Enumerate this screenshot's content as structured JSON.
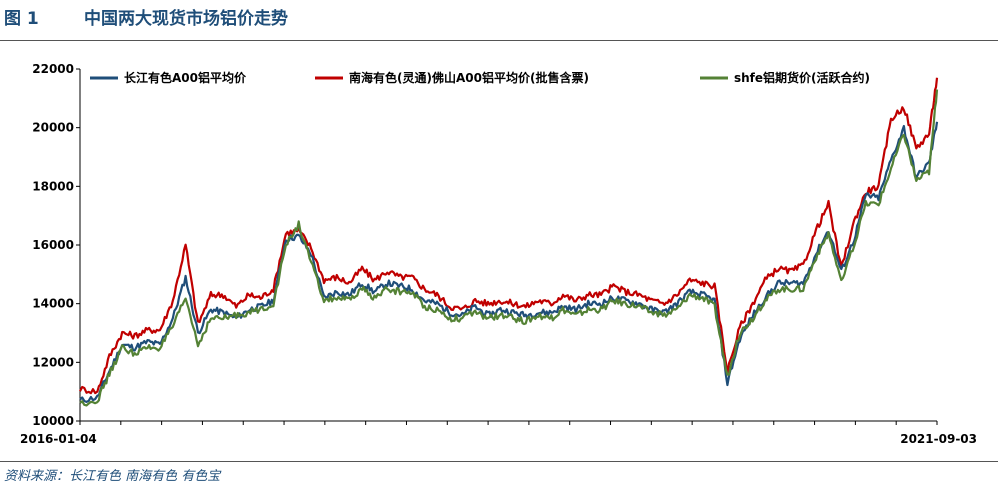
{
  "figure": {
    "number": "图 1",
    "title": "中国两大现货市场铝价走势",
    "source": "资料来源：长江有色   南海有色   有色宝"
  },
  "chart_data": {
    "type": "line",
    "title": "",
    "xlabel": "",
    "ylabel": "",
    "ylim": [
      10000,
      22000
    ],
    "yticks": [
      10000,
      12000,
      14000,
      16000,
      18000,
      20000,
      22000
    ],
    "x_start_label": "2016-01-04",
    "x_end_label": "2021-09-03",
    "grid": false,
    "legend_position": "top",
    "x": [
      "2016-01-04",
      "2016-02-15",
      "2016-03-15",
      "2016-04-15",
      "2016-05-15",
      "2016-06-15",
      "2016-07-15",
      "2016-08-15",
      "2016-09-15",
      "2016-10-15",
      "2016-11-15",
      "2016-12-15",
      "2017-01-15",
      "2017-02-15",
      "2017-03-15",
      "2017-04-15",
      "2017-05-15",
      "2017-06-15",
      "2017-07-15",
      "2017-08-15",
      "2017-09-15",
      "2017-10-15",
      "2017-11-15",
      "2017-12-15",
      "2018-01-15",
      "2018-02-15",
      "2018-03-15",
      "2018-04-15",
      "2018-05-15",
      "2018-06-15",
      "2018-07-15",
      "2018-08-15",
      "2018-09-15",
      "2018-10-15",
      "2018-11-15",
      "2018-12-15",
      "2019-01-15",
      "2019-02-15",
      "2019-03-15",
      "2019-04-15",
      "2019-05-15",
      "2019-06-15",
      "2019-07-15",
      "2019-08-15",
      "2019-09-15",
      "2019-10-15",
      "2019-11-15",
      "2019-12-15",
      "2020-01-15",
      "2020-02-15",
      "2020-03-15",
      "2020-04-15",
      "2020-05-15",
      "2020-06-15",
      "2020-07-15",
      "2020-08-15",
      "2020-09-15",
      "2020-10-15",
      "2020-11-15",
      "2020-12-15",
      "2021-01-15",
      "2021-02-15",
      "2021-03-15",
      "2021-04-15",
      "2021-05-15",
      "2021-06-15",
      "2021-07-15",
      "2021-08-15",
      "2021-09-03"
    ],
    "series": [
      {
        "name": "长江有色A00铝平均价",
        "color": "#1f4e79",
        "values": [
          10700,
          10800,
          11700,
          12600,
          12500,
          12700,
          12600,
          13500,
          14900,
          13000,
          13800,
          13700,
          13500,
          13800,
          13900,
          14100,
          16200,
          16300,
          15700,
          14200,
          14400,
          14300,
          14700,
          14400,
          14700,
          14600,
          14500,
          14100,
          14000,
          13700,
          13600,
          13900,
          13600,
          13800,
          13700,
          13600,
          13700,
          13700,
          13900,
          13800,
          14000,
          14000,
          14200,
          14100,
          14000,
          13800,
          13700,
          14000,
          14400,
          14300,
          14100,
          11300,
          12800,
          13600,
          14200,
          14700,
          14700,
          14700,
          15700,
          16500,
          15100,
          16200,
          17700,
          17600,
          18900,
          20000,
          18300,
          18800,
          20200
        ]
      },
      {
        "name": "南海有色(灵通)佛山A00铝平均价(批售含票)",
        "color": "#c00000",
        "values": [
          11100,
          11000,
          12200,
          13000,
          12900,
          13100,
          13100,
          14100,
          16000,
          13300,
          14300,
          14300,
          13900,
          14300,
          14200,
          14500,
          16400,
          16500,
          15900,
          14800,
          14900,
          14700,
          15200,
          14800,
          15100,
          14900,
          14900,
          14500,
          14300,
          13900,
          13800,
          14100,
          14000,
          14100,
          14000,
          13900,
          14100,
          14000,
          14300,
          14100,
          14300,
          14300,
          14600,
          14400,
          14300,
          14100,
          14000,
          14300,
          14800,
          14700,
          14600,
          11700,
          13200,
          14000,
          14800,
          15200,
          15100,
          15300,
          16500,
          17400,
          15200,
          16800,
          17800,
          18000,
          20300,
          20700,
          19300,
          19800,
          21700
        ]
      },
      {
        "name": "shfe铝期货价(活跃合约)",
        "color": "#548235",
        "values": [
          10600,
          10700,
          11600,
          12500,
          12300,
          12500,
          12500,
          13200,
          14200,
          12600,
          13500,
          13500,
          13600,
          13700,
          13800,
          14000,
          16000,
          16700,
          15400,
          14100,
          14200,
          14100,
          14500,
          14200,
          14500,
          14400,
          14400,
          13900,
          13800,
          13500,
          13500,
          13700,
          13500,
          13600,
          13500,
          13400,
          13600,
          13500,
          13800,
          13600,
          13800,
          13800,
          14100,
          14000,
          13900,
          13700,
          13600,
          13800,
          14300,
          14200,
          13900,
          11500,
          13000,
          13500,
          14100,
          14500,
          14500,
          14500,
          15600,
          16400,
          14700,
          16000,
          17400,
          17400,
          18600,
          19800,
          18200,
          18500,
          21300
        ]
      }
    ]
  }
}
